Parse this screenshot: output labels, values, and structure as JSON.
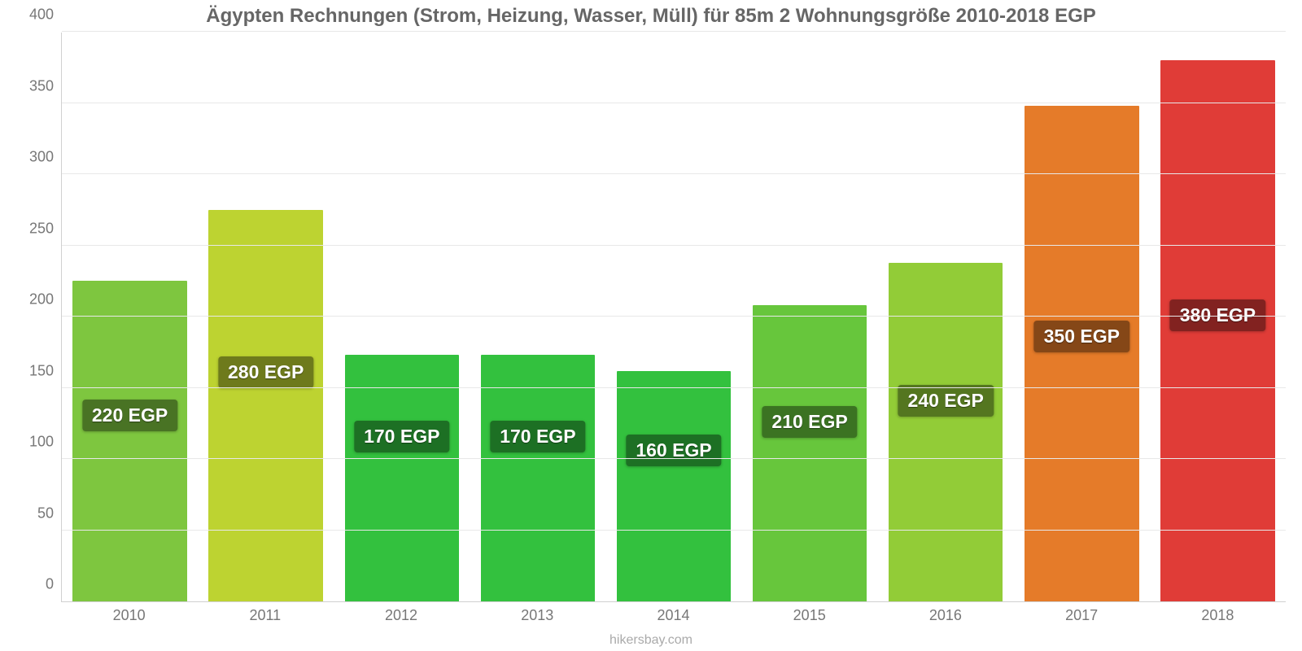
{
  "chart": {
    "type": "bar",
    "title": "Ägypten Rechnungen (Strom, Heizung, Wasser, Müll) für 85m 2 Wohnungsgröße 2010-2018 EGP",
    "title_fontsize": 24,
    "title_color": "#666666",
    "source_label": "hikersbay.com",
    "source_fontsize": 16,
    "source_color": "#aaaaaa",
    "background_color": "#ffffff",
    "grid_color": "#e8e8e8",
    "axis_color": "#d0d0d0",
    "tick_font_color": "#777777",
    "tick_fontsize": 18,
    "y": {
      "min": 0,
      "max": 400,
      "ticks": [
        0,
        50,
        100,
        150,
        200,
        250,
        300,
        350,
        400
      ]
    },
    "bar_width_ratio": 0.84,
    "categories": [
      "2010",
      "2011",
      "2012",
      "2013",
      "2014",
      "2015",
      "2016",
      "2017",
      "2018"
    ],
    "bars": [
      {
        "value": 225,
        "label": "220 EGP",
        "color": "#7ec63f",
        "label_y_value": 130
      },
      {
        "value": 275,
        "label": "280 EGP",
        "color": "#bdd331",
        "label_y_value": 160
      },
      {
        "value": 173,
        "label": "170 EGP",
        "color": "#33c13e",
        "label_y_value": 115
      },
      {
        "value": 173,
        "label": "170 EGP",
        "color": "#33c13e",
        "label_y_value": 115
      },
      {
        "value": 162,
        "label": "160 EGP",
        "color": "#33c13e",
        "label_y_value": 105
      },
      {
        "value": 208,
        "label": "210 EGP",
        "color": "#67c63c",
        "label_y_value": 125
      },
      {
        "value": 238,
        "label": "240 EGP",
        "color": "#92cc37",
        "label_y_value": 140
      },
      {
        "value": 348,
        "label": "350 EGP",
        "color": "#e57b29",
        "label_y_value": 185
      },
      {
        "value": 380,
        "label": "380 EGP",
        "color": "#e03c37",
        "label_y_value": 200
      }
    ],
    "label_style": {
      "fontsize": 23,
      "font_weight": 700,
      "text_color": "#ffffff",
      "bg_color": "rgba(0,0,0,0.42)",
      "border_radius": 4,
      "padding": "6px 12px"
    }
  }
}
